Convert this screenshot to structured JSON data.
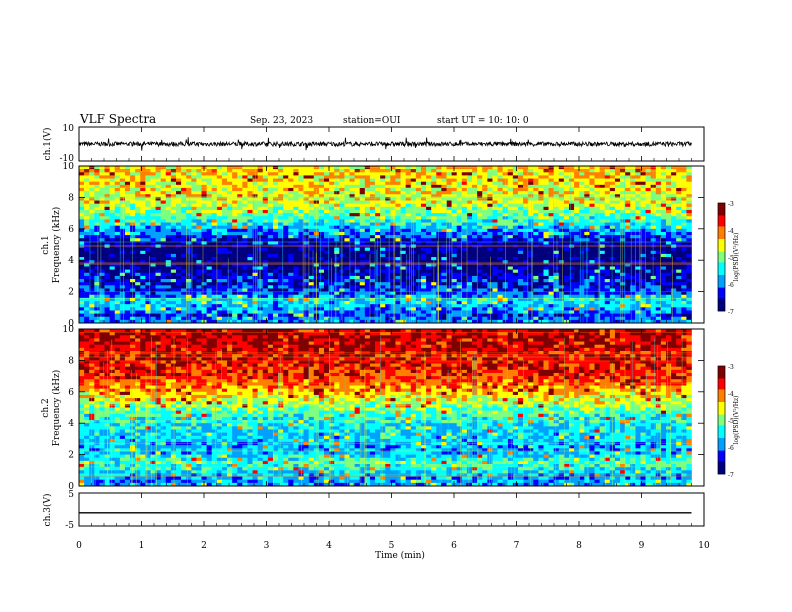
{
  "header": {
    "title": "VLF Spectra",
    "date": "Sep. 23, 2023",
    "station": "station=OUI",
    "start": "start UT =  10: 10: 0"
  },
  "colors": {
    "colormap": [
      "#00007f",
      "#0000ff",
      "#00a0ff",
      "#00ffff",
      "#7fff7f",
      "#ffff00",
      "#ff7f00",
      "#ff0000",
      "#7f0000"
    ],
    "trace": "#000000",
    "axes": "#000000"
  },
  "chart_data": [
    {
      "type": "line",
      "panel": "ch1-waveform",
      "ylabel": "ch.1(V)",
      "ylim": [
        -10,
        10
      ],
      "y_ticklabels": [
        "10",
        "-10"
      ],
      "baseline_value": 0,
      "description_values": {
        "x": [
          0,
          9.8
        ],
        "y_range_approx": [
          -2,
          2
        ]
      }
    },
    {
      "type": "heatmap",
      "panel": "ch1-spectrogram",
      "ylabel": "ch.1\nFrequency (kHz)",
      "ylabel_line1": "ch.1",
      "ylabel_line2": "Frequency (kHz)",
      "ylim": [
        0,
        10
      ],
      "y_ticklabels": [
        "0",
        "2",
        "4",
        "6",
        "8",
        "10"
      ],
      "xlim": [
        0,
        9.8
      ],
      "log_psd_profile": {
        "freq_khz": [
          0,
          0.5,
          1,
          1.5,
          2,
          2.5,
          3,
          3.5,
          4,
          4.5,
          5,
          5.5,
          6,
          6.5,
          7,
          7.5,
          8,
          8.5,
          9,
          9.5,
          10
        ],
        "log_psd": [
          -6.0,
          -6.2,
          -5.8,
          -5.6,
          -6.3,
          -6.4,
          -6.5,
          -6.7,
          -6.9,
          -6.9,
          -6.7,
          -6.2,
          -5.8,
          -5.3,
          -5.0,
          -4.8,
          -4.6,
          -4.6,
          -4.5,
          -4.5,
          -4.4
        ]
      },
      "colorbar": {
        "label": "log(PSD)(V²/Hz)",
        "range": [
          -7,
          -3
        ],
        "ticklabels": [
          "-3",
          "-4",
          "-5",
          "-6",
          "-7"
        ]
      }
    },
    {
      "type": "heatmap",
      "panel": "ch2-spectrogram",
      "ylabel": "ch.2\nFrequency (kHz)",
      "ylabel_line1": "ch.2",
      "ylabel_line2": "Frequency (kHz)",
      "ylim": [
        0,
        10
      ],
      "y_ticklabels": [
        "0",
        "2",
        "4",
        "6",
        "8",
        "10"
      ],
      "xlim": [
        0,
        9.8
      ],
      "log_psd_profile": {
        "freq_khz": [
          0,
          0.5,
          1,
          1.5,
          2,
          2.5,
          3,
          3.5,
          4,
          4.5,
          5,
          5.5,
          6,
          6.5,
          7,
          7.5,
          8,
          8.5,
          9,
          9.5,
          10
        ],
        "log_psd": [
          -5.8,
          -5.9,
          -5.5,
          -5.2,
          -5.7,
          -5.8,
          -5.7,
          -5.6,
          -5.5,
          -5.3,
          -5.0,
          -4.6,
          -4.3,
          -4.0,
          -3.8,
          -3.7,
          -3.6,
          -3.6,
          -3.5,
          -3.5,
          -3.5
        ]
      },
      "colorbar": {
        "label": "log(PSD)(V²/Hz)",
        "range": [
          -7,
          -3
        ],
        "ticklabels": [
          "-3",
          "-4",
          "-5",
          "-6",
          "-7"
        ]
      }
    },
    {
      "type": "line",
      "panel": "ch3-waveform",
      "ylabel": "ch.3(V)",
      "ylim": [
        -5,
        5
      ],
      "y_ticklabels": [
        "5",
        "-5"
      ],
      "x": [
        0,
        9.8
      ],
      "y": [
        -1,
        -1
      ]
    }
  ],
  "x_axis": {
    "label": "Time (min)",
    "range": [
      0,
      10
    ],
    "ticklabels": [
      "0",
      "1",
      "2",
      "3",
      "4",
      "5",
      "6",
      "7",
      "8",
      "9",
      "10"
    ]
  }
}
